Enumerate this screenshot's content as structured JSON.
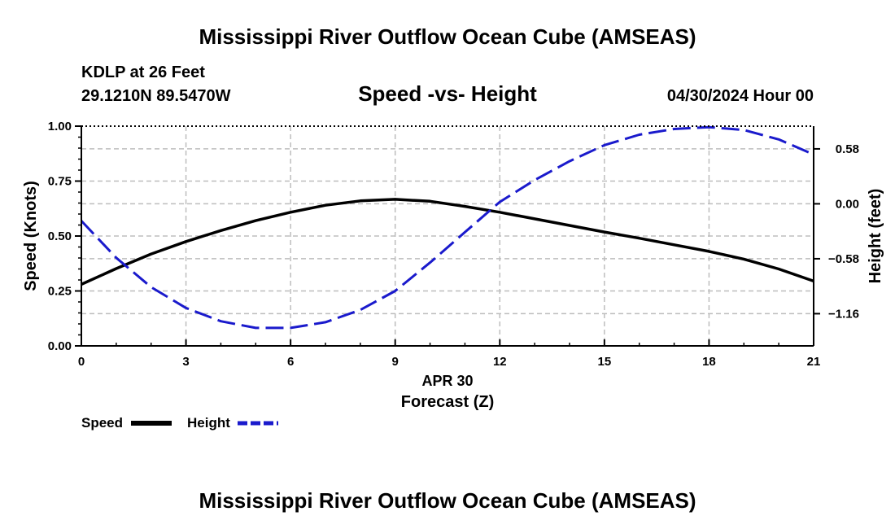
{
  "header": {
    "title": "Mississippi River Outflow Ocean Cube (AMSEAS)",
    "station": "KDLP at 26 Feet",
    "coords": "29.1210N  89.5470W",
    "plot_title": "Speed -vs- Height",
    "datetime": "04/30/2024 Hour 00"
  },
  "footer": {
    "title": "Mississippi River Outflow Ocean Cube (AMSEAS)"
  },
  "chart_data": {
    "type": "line",
    "title": "Speed -vs- Height",
    "xlabel": "Forecast (Z)",
    "xlabel_date": "APR 30",
    "ylabel": "Speed (Knots)",
    "y2label": "Height (feet)",
    "xlim": [
      0,
      21
    ],
    "ylim": [
      0,
      1
    ],
    "y2lim": [
      -1.5,
      0.82
    ],
    "x_ticks": [
      0,
      3,
      6,
      9,
      12,
      15,
      18,
      21
    ],
    "y_ticks": [
      0.0,
      0.25,
      0.5,
      0.75,
      1.0
    ],
    "y_tick_labels": [
      "0.00",
      "0.25",
      "0.50",
      "0.75",
      "1.00"
    ],
    "y2_ticks": [
      0.58,
      0.0,
      -0.58,
      -1.16
    ],
    "y2_tick_labels": [
      "0.58",
      "0.00",
      "−0.58",
      "−1.16"
    ],
    "grid": true,
    "legend_position": "bottom-left",
    "x": [
      0,
      1,
      2,
      3,
      4,
      5,
      6,
      7,
      8,
      9,
      10,
      11,
      12,
      13,
      14,
      15,
      16,
      17,
      18,
      19,
      20,
      21
    ],
    "series": [
      {
        "name": "Speed",
        "axis": "left",
        "color": "#000000",
        "dash": "solid",
        "values": [
          0.28,
          0.352,
          0.418,
          0.475,
          0.525,
          0.57,
          0.608,
          0.64,
          0.66,
          0.667,
          0.658,
          0.635,
          0.608,
          0.578,
          0.548,
          0.518,
          0.49,
          0.46,
          0.43,
          0.395,
          0.35,
          0.295
        ]
      },
      {
        "name": "Height",
        "axis": "right",
        "color": "#1a1acc",
        "dash": "dashed",
        "values": [
          -0.18,
          -0.57,
          -0.88,
          -1.1,
          -1.24,
          -1.31,
          -1.31,
          -1.25,
          -1.12,
          -0.92,
          -0.62,
          -0.3,
          0.02,
          0.25,
          0.45,
          0.62,
          0.73,
          0.79,
          0.81,
          0.78,
          0.68,
          0.52
        ]
      }
    ]
  }
}
